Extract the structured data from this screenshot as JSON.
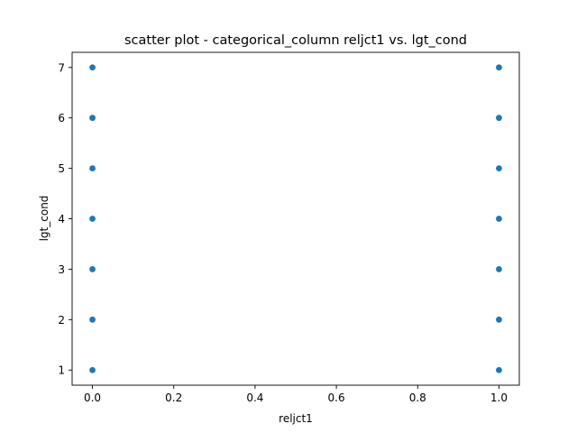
{
  "chart_data": {
    "type": "scatter",
    "title": "scatter plot - categorical_column reljct1 vs. lgt_cond",
    "xlabel": "reljct1",
    "ylabel": "lgt_cond",
    "xlim": [
      -0.05,
      1.05
    ],
    "ylim": [
      0.7,
      7.3
    ],
    "xticks": [
      0.0,
      0.2,
      0.4,
      0.6,
      0.8,
      1.0
    ],
    "xtick_labels": [
      "0.0",
      "0.2",
      "0.4",
      "0.6",
      "0.8",
      "1.0"
    ],
    "yticks": [
      1,
      2,
      3,
      4,
      5,
      6,
      7
    ],
    "ytick_labels": [
      "1",
      "2",
      "3",
      "4",
      "5",
      "6",
      "7"
    ],
    "grid": false,
    "marker_color": "#1f77b4",
    "points": [
      {
        "x": 0,
        "y": 1
      },
      {
        "x": 0,
        "y": 2
      },
      {
        "x": 0,
        "y": 3
      },
      {
        "x": 0,
        "y": 4
      },
      {
        "x": 0,
        "y": 5
      },
      {
        "x": 0,
        "y": 6
      },
      {
        "x": 0,
        "y": 7
      },
      {
        "x": 1,
        "y": 1
      },
      {
        "x": 1,
        "y": 2
      },
      {
        "x": 1,
        "y": 3
      },
      {
        "x": 1,
        "y": 4
      },
      {
        "x": 1,
        "y": 5
      },
      {
        "x": 1,
        "y": 6
      },
      {
        "x": 1,
        "y": 7
      }
    ]
  }
}
